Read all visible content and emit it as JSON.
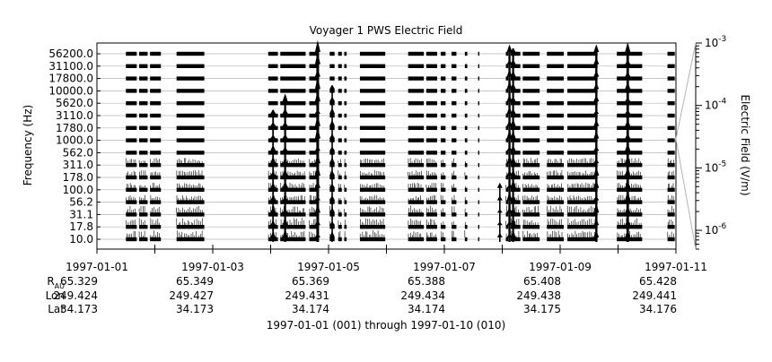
{
  "chart_data": {
    "type": "line",
    "title": "Voyager 1 PWS Electric Field",
    "ylabel": "Frequency (Hz)",
    "right_axis_label": "Electric Field (V/m)",
    "footer": "1997-01-01 (001) through 1997-01-10 (010)",
    "x_range": [
      "1997-01-01",
      "1997-01-11"
    ],
    "right_axis": {
      "scale": "log",
      "range": [
        5e-07,
        0.001
      ]
    },
    "right_ticks": [
      {
        "base": "10",
        "exp": "-3",
        "value": 0.001
      },
      {
        "base": "10",
        "exp": "-4",
        "value": 0.0001
      },
      {
        "base": "10",
        "exp": "-5",
        "value": 1e-05
      },
      {
        "base": "10",
        "exp": "-6",
        "value": 1e-06
      }
    ],
    "channels": [
      "56200.0",
      "31100.0",
      "17800.0",
      "10000.0",
      "5620.0",
      "3110.0",
      "1780.0",
      "1000.0",
      "562.0",
      "311.0",
      "178.0",
      "100.0",
      "56.2",
      "31.1",
      "17.8",
      "10.0"
    ],
    "date_ticks": [
      "1997-01-01",
      "1997-01-03",
      "1997-01-05",
      "1997-01-07",
      "1997-01-09",
      "1997-01-11"
    ],
    "ephemeris": {
      "rows": [
        {
          "label": "R",
          "sub": "AU",
          "values": [
            "65.329",
            "65.349",
            "65.369",
            "65.388",
            "65.408",
            "65.428"
          ]
        },
        {
          "label": "Lon",
          "values": [
            "249.424",
            "249.427",
            "249.431",
            "249.434",
            "249.438",
            "249.441"
          ]
        },
        {
          "label": "Lat",
          "values": [
            "34.173",
            "34.173",
            "34.174",
            "34.174",
            "34.175",
            "34.176"
          ]
        }
      ]
    },
    "data_segments": [
      [
        "1997-01-01T12:00",
        "1997-01-01T16:30"
      ],
      [
        "1997-01-01T17:30",
        "1997-01-01T21:00"
      ],
      [
        "1997-01-01T22:00",
        "1997-01-02T02:30"
      ],
      [
        "1997-01-02T09:00",
        "1997-01-02T20:30"
      ],
      [
        "1997-01-03T23:00",
        "1997-01-04T03:00"
      ],
      [
        "1997-01-04T04:00",
        "1997-01-04T14:30"
      ],
      [
        "1997-01-04T16:00",
        "1997-01-04T20:00"
      ],
      [
        "1997-01-05T00:30",
        "1997-01-05T02:30"
      ],
      [
        "1997-01-05T04:00",
        "1997-01-05T05:30"
      ],
      [
        "1997-01-05T06:30",
        "1997-01-05T07:30"
      ],
      [
        "1997-01-05T13:00",
        "1997-01-05T23:30"
      ],
      [
        "1997-01-06T09:00",
        "1997-01-06T15:30"
      ],
      [
        "1997-01-06T16:30",
        "1997-01-06T21:00"
      ],
      [
        "1997-01-06T22:30",
        "1997-01-07T00:30"
      ],
      [
        "1997-01-07T03:00",
        "1997-01-07T05:00"
      ],
      [
        "1997-01-07T08:30",
        "1997-01-07T09:30"
      ],
      [
        "1997-01-07T14:00",
        "1997-01-07T14:30"
      ],
      [
        "1997-01-08T01:30",
        "1997-01-08T02:30"
      ],
      [
        "1997-01-08T03:30",
        "1997-01-08T07:30"
      ],
      [
        "1997-01-08T08:30",
        "1997-01-08T15:30"
      ],
      [
        "1997-01-08T18:30",
        "1997-01-09T01:30"
      ],
      [
        "1997-01-09T03:00",
        "1997-01-09T15:30"
      ],
      [
        "1997-01-09T23:30",
        "1997-01-10T10:00"
      ],
      [
        "1997-01-10T20:30",
        "1997-01-10T23:30"
      ]
    ],
    "bursts": [
      {
        "x": "1997-01-04T19:30",
        "top": "56200.0",
        "intensity": 1.0
      },
      {
        "x": "1997-01-04T06:00",
        "top": "5620.0",
        "intensity": 0.6
      },
      {
        "x": "1997-01-04T01:00",
        "top": "3110.0",
        "intensity": 0.4
      },
      {
        "x": "1997-01-08T03:00",
        "top": "56200.0",
        "intensity": 0.7
      },
      {
        "x": "1997-01-08T04:30",
        "top": "56200.0",
        "intensity": 0.6
      },
      {
        "x": "1997-01-09T15:00",
        "top": "56200.0",
        "intensity": 0.7
      },
      {
        "x": "1997-01-10T04:00",
        "top": "56200.0",
        "intensity": 0.9
      },
      {
        "x": "1997-01-05T01:30",
        "top": "10000.0",
        "intensity": 0.3
      },
      {
        "x": "1997-01-07T23:00",
        "top": "100.0",
        "intensity": 0.3
      }
    ],
    "grid": true,
    "legend": "none"
  }
}
